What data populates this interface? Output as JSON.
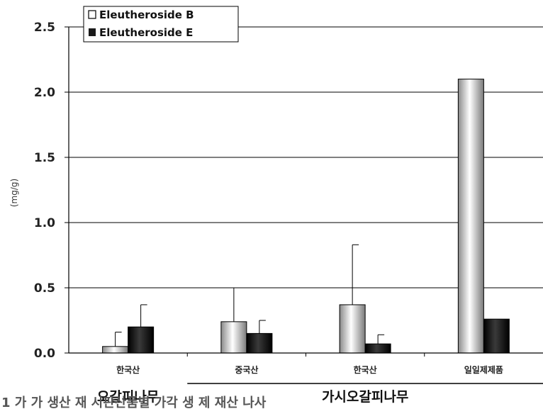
{
  "chart_data": {
    "type": "bar",
    "title": "",
    "xlabel": "",
    "ylabel": "(mg/g)",
    "ylim": [
      0,
      2.5
    ],
    "yticks": [
      "0.0",
      "0.5",
      "1.0",
      "1.5",
      "2.0",
      "2.5"
    ],
    "grid": true,
    "legend_position": "top-left",
    "categories": [
      "한국산",
      "중국산",
      "한국산",
      "일일제제품"
    ],
    "groups": [
      {
        "label": "오갈피나무",
        "categories": [
          "한국산"
        ]
      },
      {
        "label": "가시오갈피나무",
        "categories": [
          "중국산",
          "한국산",
          "일일제제품"
        ]
      }
    ],
    "series": [
      {
        "name": "Eleutheroside B",
        "values": [
          0.05,
          0.24,
          0.37,
          2.1
        ],
        "errors": [
          0.11,
          0.26,
          0.46,
          null
        ],
        "color": "#d8d8d8"
      },
      {
        "name": "Eleutheroside E",
        "values": [
          0.2,
          0.15,
          0.07,
          0.26
        ],
        "errors": [
          0.17,
          0.1,
          0.07,
          null
        ],
        "color": "#1a1a1a"
      }
    ]
  },
  "caption_fragment": "1 가 가 생산 재 시판산품별 가각 생 제 재산 나사"
}
